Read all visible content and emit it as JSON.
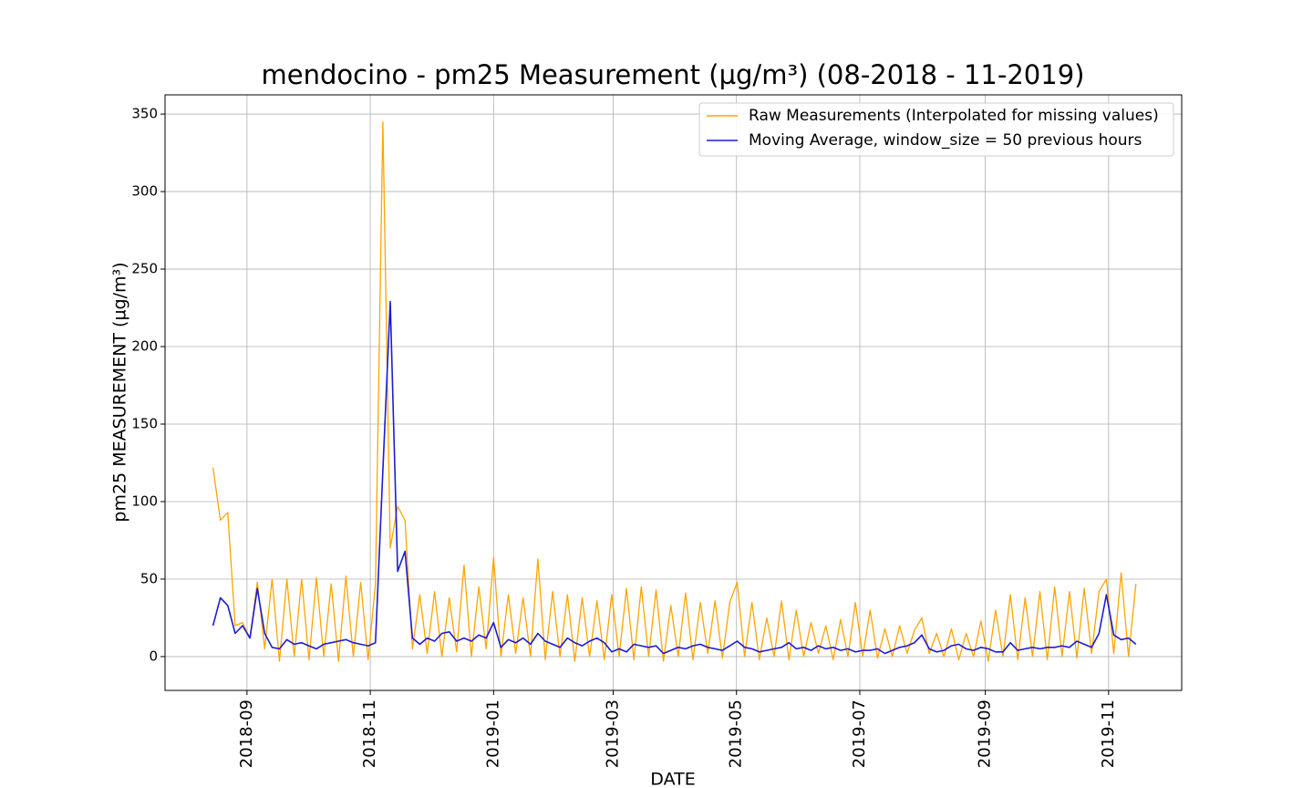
{
  "chart_data": {
    "type": "line",
    "title": "mendocino - pm25 Measurement (µg/m³) (08-2018 - 11-2019)",
    "x_label": "DATE",
    "y_label": "pm25 MEASUREMENT (µg/m³)",
    "x": [
      2018.62,
      2018.63,
      2018.64,
      2018.65,
      2018.66,
      2018.67,
      2018.68,
      2018.69,
      2018.7,
      2018.71,
      2018.72,
      2018.73,
      2018.74,
      2018.75,
      2018.76,
      2018.77,
      2018.78,
      2018.79,
      2018.8,
      2018.81,
      2018.82,
      2018.83,
      2018.84,
      2018.85,
      2018.86,
      2018.87,
      2018.88,
      2018.89,
      2018.9,
      2018.91,
      2018.92,
      2018.93,
      2018.94,
      2018.95,
      2018.96,
      2018.97,
      2018.98,
      2018.99,
      2019.0,
      2019.01,
      2019.02,
      2019.03,
      2019.04,
      2019.05,
      2019.06,
      2019.07,
      2019.08,
      2019.09,
      2019.1,
      2019.11,
      2019.12,
      2019.13,
      2019.14,
      2019.15,
      2019.16,
      2019.17,
      2019.18,
      2019.19,
      2019.2,
      2019.21,
      2019.22,
      2019.23,
      2019.24,
      2019.25,
      2019.26,
      2019.27,
      2019.28,
      2019.29,
      2019.3,
      2019.31,
      2019.32,
      2019.33,
      2019.34,
      2019.35,
      2019.36,
      2019.37,
      2019.38,
      2019.39,
      2019.4,
      2019.41,
      2019.42,
      2019.43,
      2019.44,
      2019.45,
      2019.46,
      2019.47,
      2019.48,
      2019.49,
      2019.5,
      2019.51,
      2019.52,
      2019.53,
      2019.54,
      2019.55,
      2019.56,
      2019.57,
      2019.58,
      2019.59,
      2019.6,
      2019.61,
      2019.62,
      2019.63,
      2019.64,
      2019.65,
      2019.66,
      2019.67,
      2019.68,
      2019.69,
      2019.7,
      2019.71,
      2019.72,
      2019.73,
      2019.74,
      2019.75,
      2019.76,
      2019.77,
      2019.78,
      2019.79,
      2019.8,
      2019.81,
      2019.82,
      2019.83,
      2019.84,
      2019.85,
      2019.86,
      2019.87
    ],
    "series": [
      {
        "name": "Raw Measurements (Interpolated for missing values)",
        "color": "#ffa500",
        "values": [
          122,
          88,
          93,
          20,
          22,
          12,
          48,
          5,
          50,
          -3,
          50,
          0,
          50,
          -2,
          51,
          0,
          47,
          -3,
          52,
          0,
          48,
          -2,
          47,
          345,
          70,
          97,
          88,
          5,
          40,
          2,
          42,
          0,
          38,
          3,
          59,
          0,
          45,
          5,
          64,
          0,
          40,
          2,
          38,
          0,
          63,
          -2,
          42,
          0,
          40,
          -3,
          38,
          0,
          36,
          -2,
          40,
          0,
          44,
          -2,
          45,
          0,
          43,
          -3,
          33,
          0,
          41,
          -2,
          35,
          2,
          36,
          -1,
          35,
          48,
          0,
          35,
          -2,
          25,
          0,
          36,
          -2,
          30,
          0,
          22,
          2,
          20,
          -2,
          24,
          0,
          35,
          0,
          30,
          -1,
          18,
          0,
          20,
          2,
          17,
          25,
          2,
          15,
          0,
          18,
          -2,
          15,
          0,
          23,
          -3,
          30,
          0,
          40,
          -2,
          38,
          0,
          42,
          -2,
          45,
          0,
          42,
          -1,
          44,
          2,
          42,
          50,
          2,
          54,
          0,
          47
        ]
      },
      {
        "name": "Moving Average, window_size = 50 previous hours",
        "color": "#1c1cd6",
        "values": [
          20,
          38,
          33,
          15,
          20,
          12,
          44,
          15,
          6,
          5,
          11,
          8,
          9,
          7,
          5,
          8,
          9,
          10,
          11,
          9,
          8,
          7,
          9,
          120,
          229,
          55,
          68,
          12,
          8,
          12,
          10,
          15,
          16,
          10,
          12,
          10,
          14,
          12,
          22,
          6,
          11,
          9,
          12,
          8,
          15,
          10,
          8,
          6,
          12,
          9,
          7,
          10,
          12,
          9,
          3,
          5,
          3,
          8,
          7,
          6,
          7,
          2,
          4,
          6,
          5,
          7,
          8,
          6,
          5,
          4,
          7,
          10,
          6,
          5,
          3,
          4,
          5,
          6,
          9,
          5,
          6,
          4,
          7,
          5,
          6,
          4,
          5,
          3,
          4,
          4,
          5,
          2,
          4,
          6,
          7,
          9,
          14,
          5,
          3,
          4,
          7,
          8,
          5,
          4,
          6,
          5,
          3,
          3,
          9,
          4,
          5,
          6,
          5,
          6,
          6,
          7,
          6,
          10,
          8,
          6,
          15,
          40,
          14,
          11,
          12,
          8
        ]
      }
    ],
    "xlim": [
      2018.555,
      2019.932
    ],
    "ylim": [
      -21.8,
      362.4
    ],
    "xticks": [
      {
        "value": 2018.666,
        "label": "2018-09"
      },
      {
        "value": 2018.833,
        "label": "2018-11"
      },
      {
        "value": 2019.0,
        "label": "2019-01"
      },
      {
        "value": 2019.162,
        "label": "2019-03"
      },
      {
        "value": 2019.329,
        "label": "2019-05"
      },
      {
        "value": 2019.496,
        "label": "2019-07"
      },
      {
        "value": 2019.666,
        "label": "2019-09"
      },
      {
        "value": 2019.833,
        "label": "2019-11"
      }
    ],
    "yticks": [
      0,
      50,
      100,
      150,
      200,
      250,
      300,
      350
    ],
    "grid": true,
    "legend": "upper right"
  }
}
